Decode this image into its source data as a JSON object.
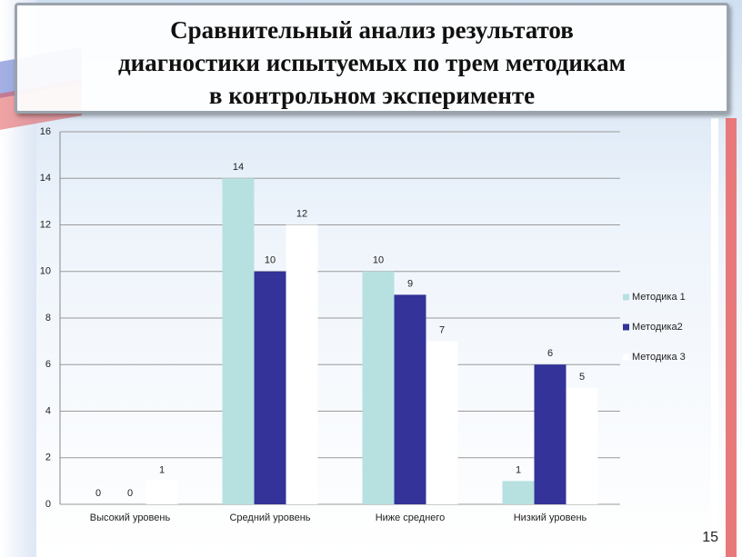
{
  "title": [
    "Сравнительный анализ результатов",
    "диагностики испытуемых по трем методикам",
    "в контрольном эксперименте"
  ],
  "slide_number": 15,
  "chart_data": {
    "type": "bar",
    "categories": [
      "Высокий уровень",
      "Средний уровень",
      "Ниже среднего",
      "Низкий уровень"
    ],
    "series": [
      {
        "name": "Методика 1",
        "color": "#b7e1e0",
        "values": [
          0,
          14,
          10,
          1
        ]
      },
      {
        "name": "Методика2",
        "color": "#333399",
        "values": [
          0,
          10,
          9,
          6
        ]
      },
      {
        "name": "Методика 3",
        "color": "#ffffff",
        "values": [
          1,
          12,
          7,
          5
        ]
      }
    ],
    "ylim": [
      0,
      16
    ],
    "yticks": [
      0,
      2,
      4,
      6,
      8,
      10,
      12,
      14,
      16
    ],
    "grid": true,
    "legend": "right"
  }
}
